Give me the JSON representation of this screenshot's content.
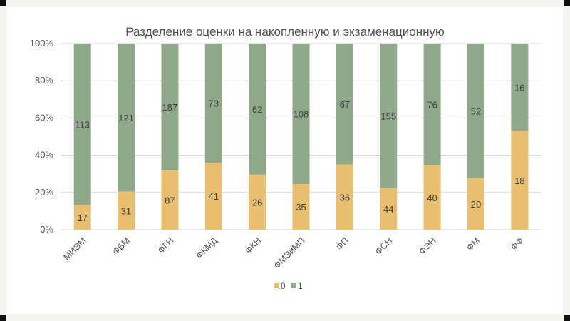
{
  "colors": {
    "series0": "#e8bf6f",
    "series1": "#8fa88a",
    "grid": "#d4d4d4",
    "background": "#ffffff"
  },
  "chart_data": {
    "type": "bar",
    "stacked": "percent",
    "title": "Разделение оценки на накопленную и экзаменационную",
    "xlabel": "",
    "ylabel": "",
    "ylim": [
      0,
      100
    ],
    "yticks": [
      "0%",
      "20%",
      "40%",
      "60%",
      "80%",
      "100%"
    ],
    "grid": true,
    "legend_position": "bottom",
    "categories": [
      "МИЭМ",
      "ФБМ",
      "ФГН",
      "ФКМД",
      "ФКН",
      "ФМЭиМП",
      "ФП",
      "ФСН",
      "ФЭН",
      "ФМ",
      "ФФ"
    ],
    "series": [
      {
        "name": "0",
        "values": [
          17,
          31,
          87,
          41,
          26,
          35,
          36,
          44,
          40,
          20,
          18
        ]
      },
      {
        "name": "1",
        "values": [
          113,
          121,
          187,
          73,
          62,
          108,
          67,
          155,
          76,
          52,
          16
        ]
      }
    ]
  }
}
